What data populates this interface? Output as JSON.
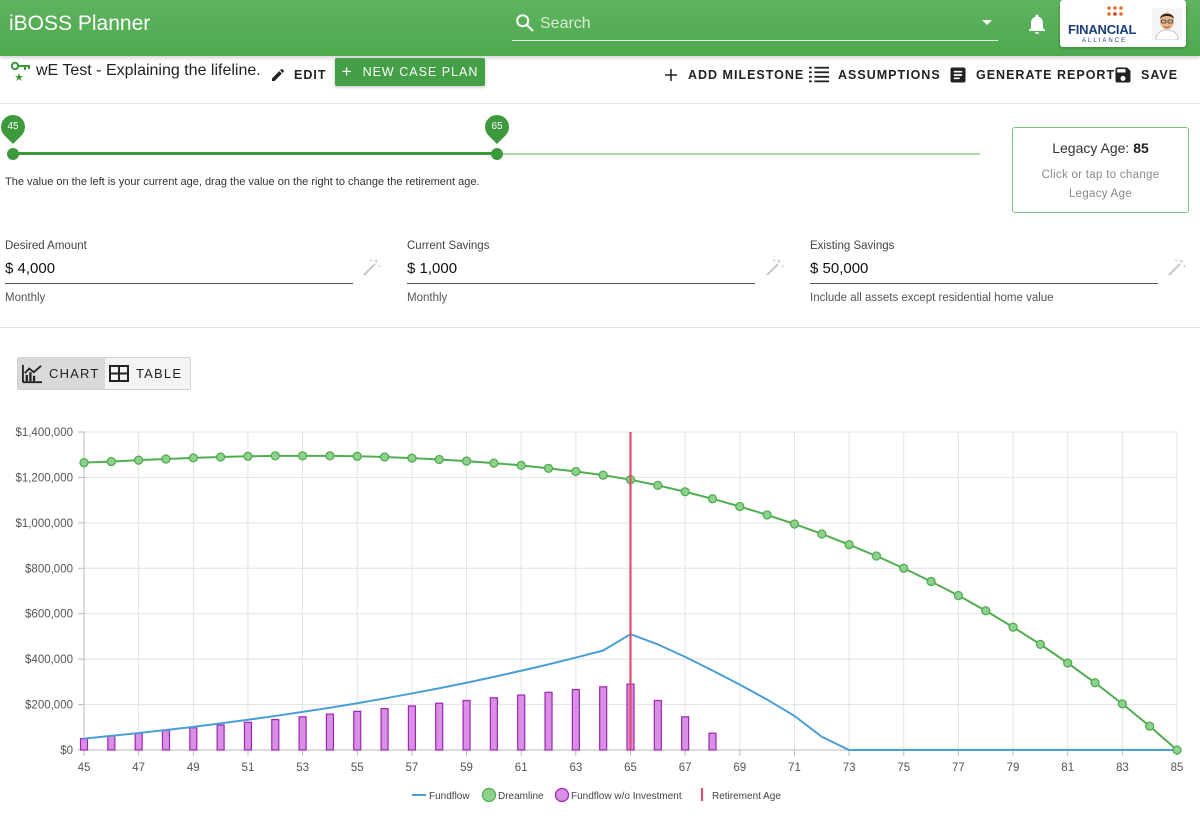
{
  "app": {
    "title": "iBOSS Planner"
  },
  "search": {
    "placeholder": "Search"
  },
  "brand": {
    "name": "FINANCIAL",
    "tagline": "ALLIANCE"
  },
  "toolbar": {
    "plan_title": "wE Test - Explaining the lifeline.",
    "edit_label": "EDIT",
    "new_case_label": "NEW CASE PLAN",
    "add_milestone_label": "ADD MILESTONE",
    "assumptions_label": "ASSUMPTIONS",
    "generate_report_label": "GENERATE REPORT",
    "save_label": "SAVE"
  },
  "slider": {
    "current_age": "45",
    "retirement_age": "65",
    "hint": "The value on the left is your current age, drag the value on the right to change the retirement age."
  },
  "legacy": {
    "label": "Legacy Age:",
    "value": "85",
    "help_line1": "Click or tap to change",
    "help_line2": "Legacy Age"
  },
  "inputs": {
    "desired": {
      "label": "Desired Amount",
      "value": "$ 4,000",
      "help": "Monthly"
    },
    "current": {
      "label": "Current Savings",
      "value": "$ 1,000",
      "help": "Monthly"
    },
    "existing": {
      "label": "Existing Savings",
      "value": "$ 50,000",
      "help": "Include all assets except residential home value"
    }
  },
  "view_toggle": {
    "chart_label": "CHART",
    "table_label": "TABLE",
    "selected": "chart"
  },
  "colors": {
    "appbar": "#4ea94e",
    "accent": "#43a047",
    "fundflow": "#4a9fd6",
    "dreamline": "#4fae4f",
    "dreamline_fill": "#8fd08f",
    "bars_fill": "#d98fe6",
    "bars_stroke": "#9c27b0",
    "retirement": "#e0506b"
  },
  "chart_data": {
    "type": "line",
    "x": [
      45,
      46,
      47,
      48,
      49,
      50,
      51,
      52,
      53,
      54,
      55,
      56,
      57,
      58,
      59,
      60,
      61,
      62,
      63,
      64,
      65,
      66,
      67,
      68,
      69,
      70,
      71,
      72,
      73,
      74,
      75,
      76,
      77,
      78,
      79,
      80,
      81,
      82,
      83,
      84,
      85
    ],
    "x_tick_labels": [
      "45",
      "47",
      "49",
      "51",
      "53",
      "55",
      "57",
      "59",
      "61",
      "63",
      "65",
      "67",
      "69",
      "71",
      "73",
      "75",
      "77",
      "79",
      "81",
      "83",
      "85"
    ],
    "y_tick_labels": [
      "$0",
      "$200,000",
      "$400,000",
      "$600,000",
      "$800,000",
      "$1,000,000",
      "$1,200,000",
      "$1,400,000"
    ],
    "ylim": [
      0,
      1400000
    ],
    "xlim": [
      45,
      85
    ],
    "grid": true,
    "legend_position": "bottom-center",
    "series": [
      {
        "name": "Fundflow",
        "type": "line",
        "values": [
          50000,
          62000,
          75000,
          88000,
          102000,
          117000,
          133000,
          150000,
          168000,
          186000,
          206000,
          227000,
          249000,
          272000,
          296000,
          322000,
          349000,
          377000,
          407000,
          438000,
          510000,
          465000,
          410000,
          350000,
          288000,
          222000,
          150000,
          58000,
          0,
          0,
          0,
          0,
          0,
          0,
          0,
          0,
          0,
          0,
          0,
          0,
          0
        ]
      },
      {
        "name": "Dreamline",
        "type": "line",
        "values": [
          1265000,
          1270000,
          1276000,
          1281000,
          1286000,
          1290000,
          1293000,
          1295000,
          1295000,
          1295000,
          1293000,
          1290000,
          1285000,
          1279000,
          1272000,
          1263000,
          1253000,
          1240000,
          1226000,
          1210000,
          1190000,
          1165000,
          1137000,
          1106000,
          1072000,
          1035000,
          995000,
          951000,
          904000,
          854000,
          800000,
          742000,
          680000,
          613000,
          541000,
          465000,
          383000,
          296000,
          203000,
          105000,
          0
        ]
      },
      {
        "name": "Fundflow w/o Investment",
        "type": "bar",
        "values": [
          50000,
          62000,
          74000,
          86000,
          98000,
          110000,
          122000,
          134000,
          146000,
          158000,
          170000,
          182000,
          194000,
          206000,
          218000,
          230000,
          242000,
          254000,
          266000,
          278000,
          290000,
          218000,
          146000,
          74000,
          0,
          0,
          0,
          0,
          0,
          0,
          0,
          0,
          0,
          0,
          0,
          0,
          0,
          0,
          0,
          0,
          0
        ]
      },
      {
        "name": "Retirement Age",
        "type": "vline",
        "x_value": 65
      }
    ]
  }
}
